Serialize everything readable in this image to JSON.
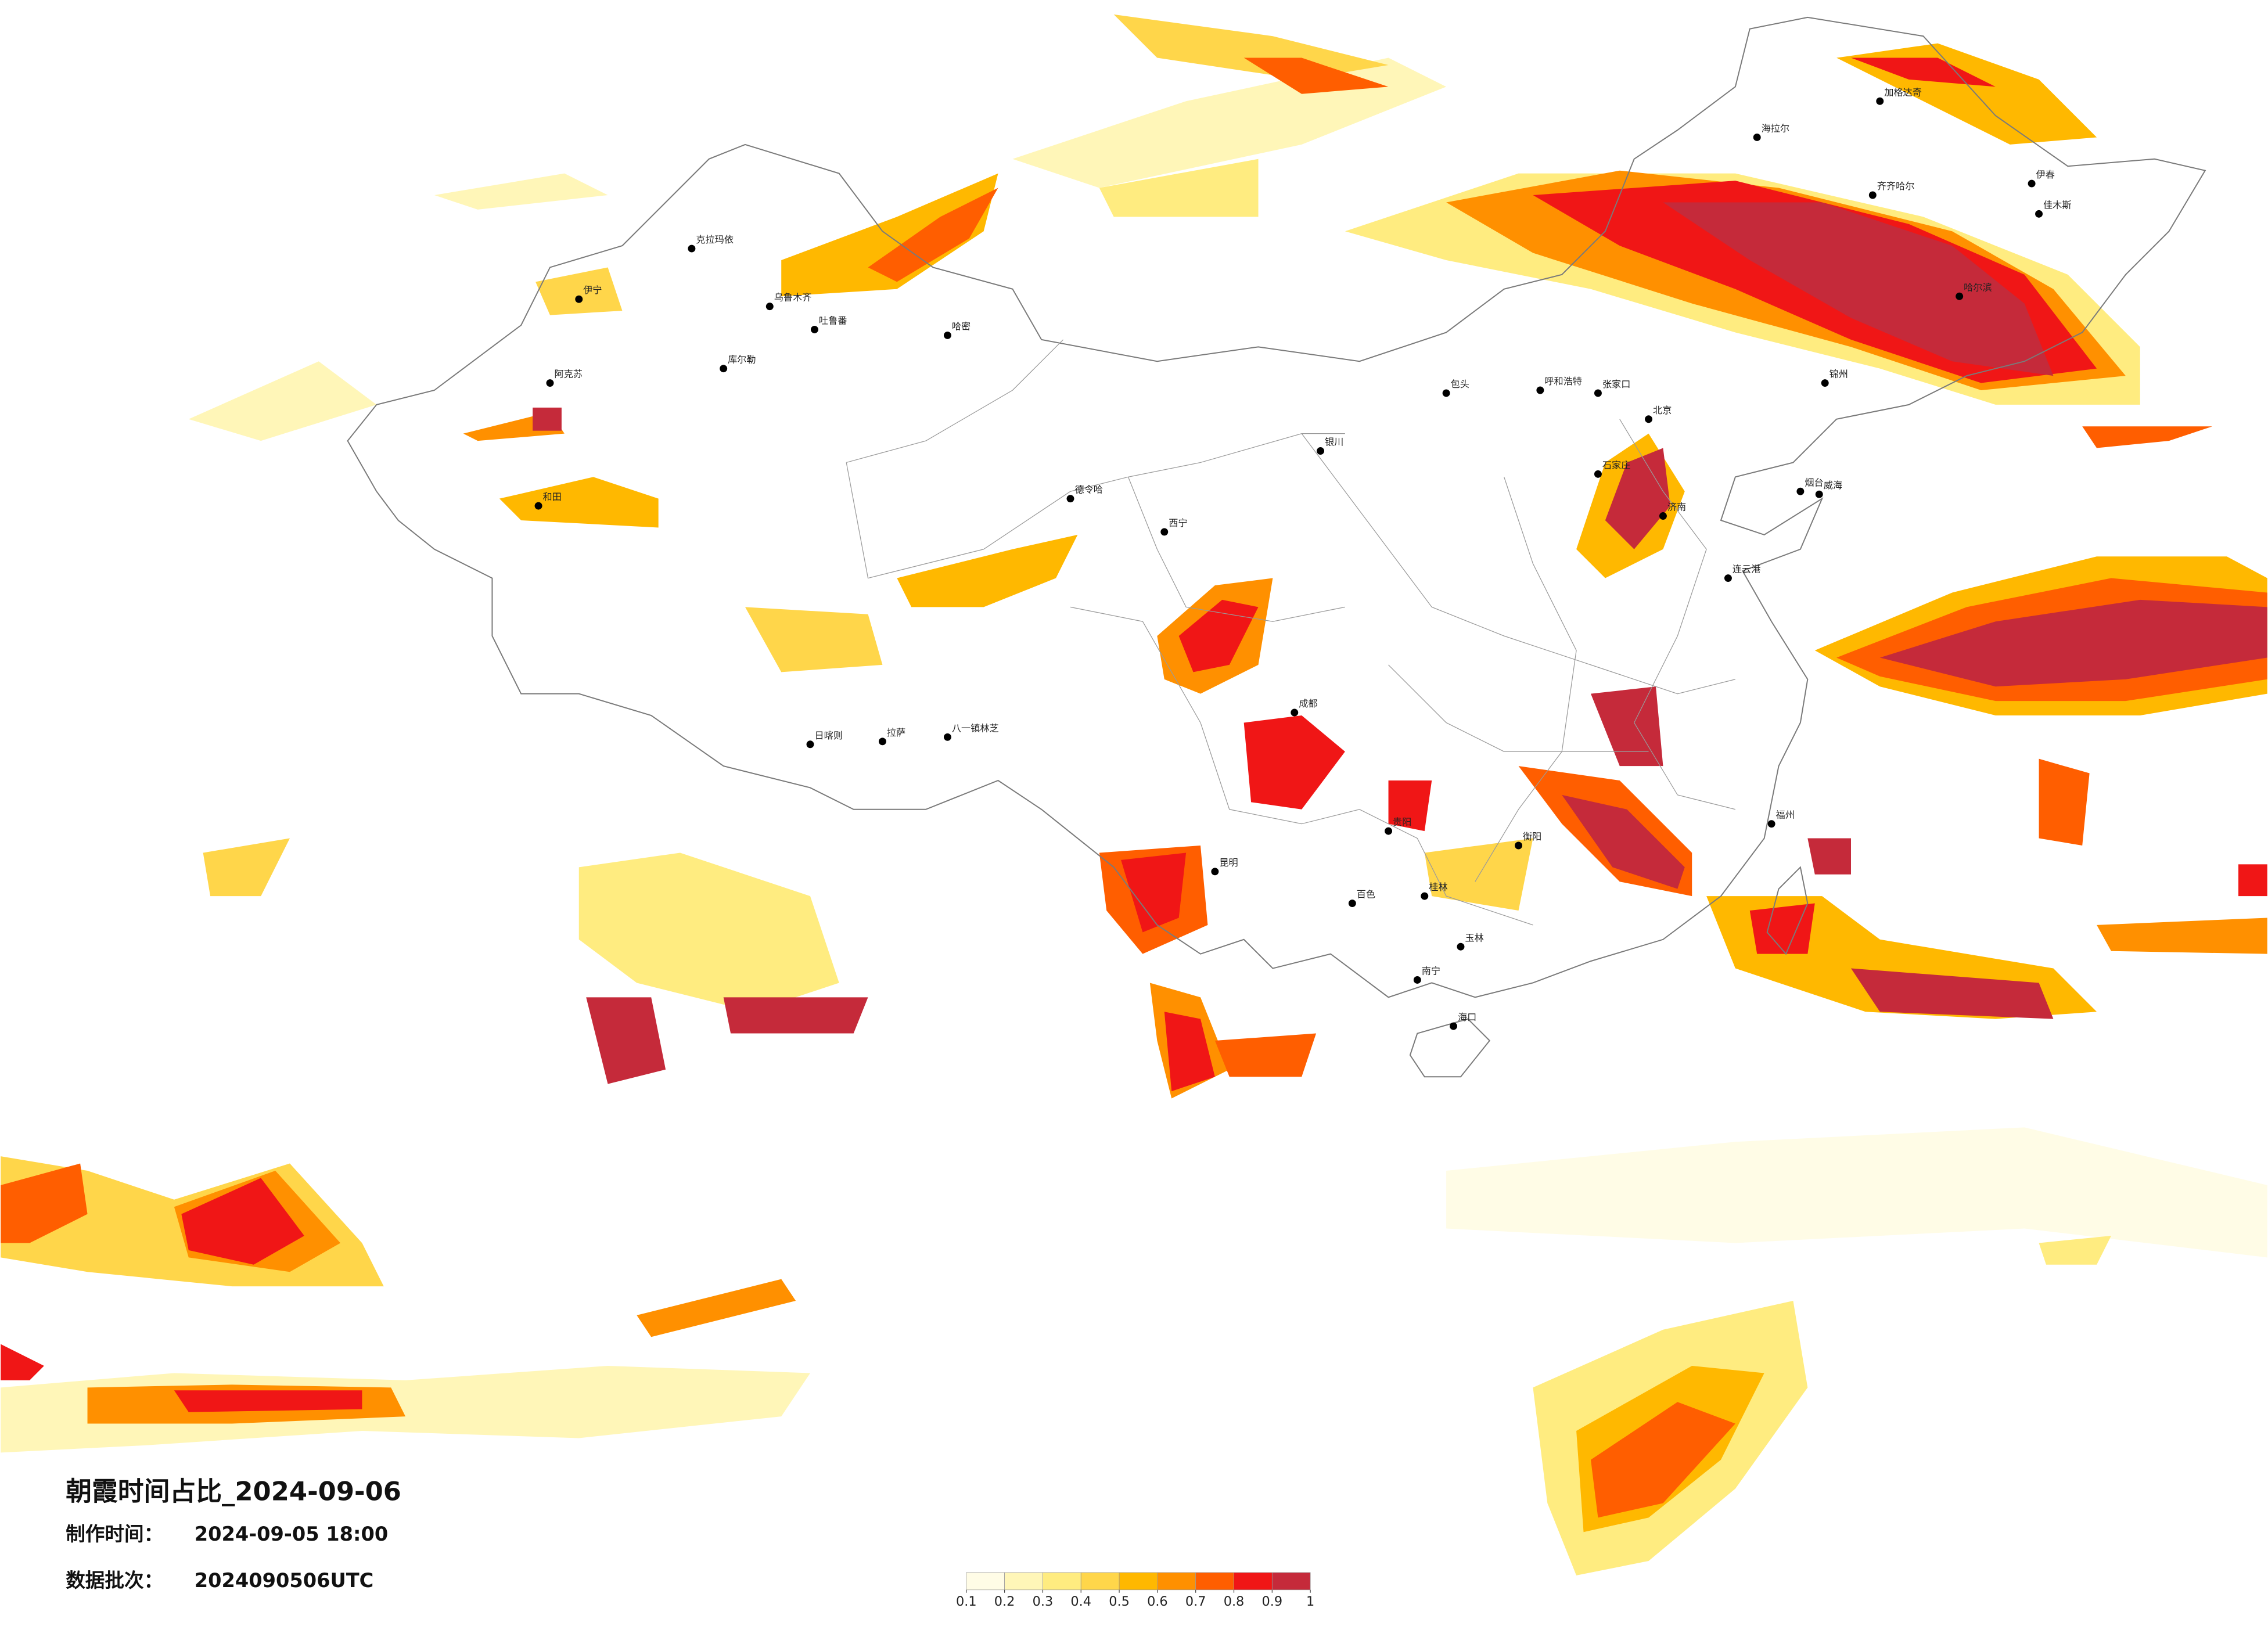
{
  "title": "朝霞时间占比_2024-09-06",
  "info": [
    {
      "label": "制作时间：",
      "value": "2024-09-05 18:00"
    },
    {
      "label": "数据批次：",
      "value": "2024090506UTC"
    }
  ],
  "legend": {
    "ticks": [
      0.1,
      0.2,
      0.3,
      0.4,
      0.5,
      0.6,
      0.7,
      0.8,
      0.9,
      1
    ],
    "colors": [
      "#fffce6",
      "#fff6b8",
      "#ffec80",
      "#ffd64a",
      "#ffb800",
      "#ff9000",
      "#ff5e00",
      "#f01616",
      "#c52a3a"
    ]
  },
  "cities": [
    "伊宁",
    "克拉玛依",
    "乌鲁木齐",
    "吐鲁番",
    "哈密",
    "库尔勒",
    "阿克苏",
    "和田",
    "拉萨",
    "日喀则",
    "八一镇林芝",
    "德令哈",
    "西宁",
    "银川",
    "呼和浩特",
    "包头",
    "张家口",
    "北京",
    "石家庄",
    "济南",
    "成都",
    "贵阳",
    "昆明",
    "南宁",
    "海口",
    "福州",
    "哈尔滨",
    "齐齐哈尔",
    "海拉尔",
    "加格达奇",
    "伊春",
    "佳木斯",
    "锦州",
    "烟台",
    "威海",
    "连云港",
    "衡阳",
    "桂林",
    "玉林",
    "百色"
  ]
}
